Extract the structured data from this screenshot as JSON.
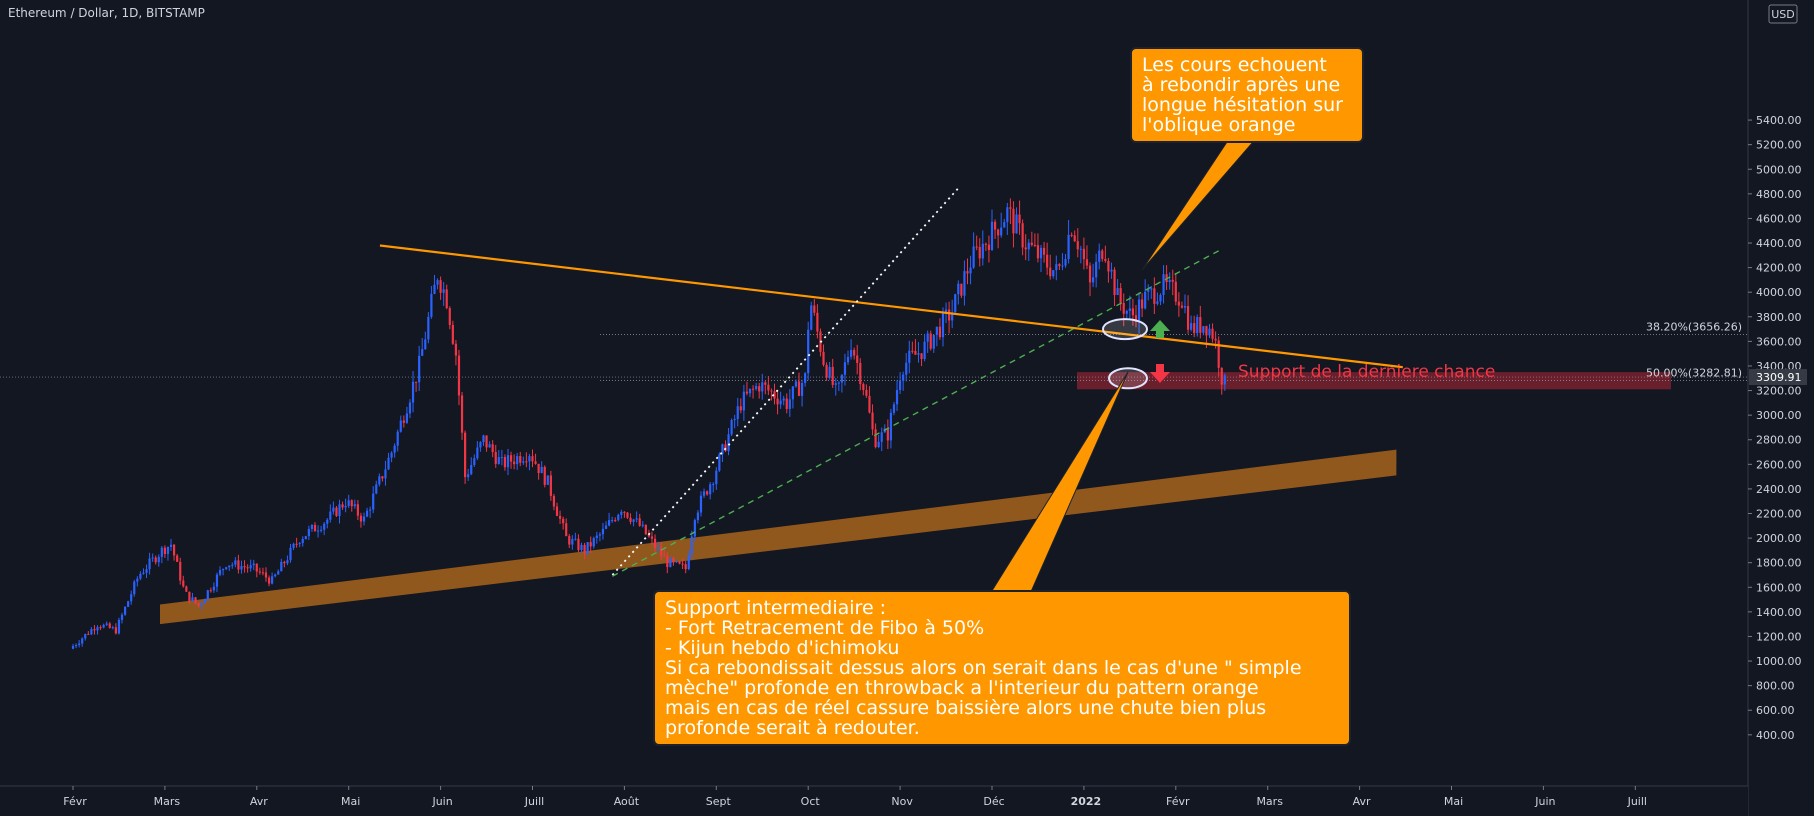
{
  "header": {
    "title": "Ethereum / Dollar, 1D, BITSTAMP"
  },
  "currency_badge": "USD",
  "callout_top": {
    "lines": [
      "Les cours echouent",
      "à rebondir après une",
      "longue hésitation sur",
      "l'oblique orange"
    ]
  },
  "callout_bottom": {
    "lines": [
      "Support intermediaire :",
      "- Fort Retracement de Fibo à 50%",
      "- Kijun hebdo d'ichimoku",
      "Si ca rebondissait dessus alors on serait dans le cas d'une \" simple",
      "mèche\" profonde en throwback a l'interieur du pattern orange",
      "mais en cas de réel cassure baissière alors une chute bien plus",
      "profonde serait à redouter."
    ]
  },
  "support_label": "Support de la derniere chance",
  "colors": {
    "background": "#131722",
    "up": "#2962ff",
    "down": "#f23645",
    "orange": "#ff9800",
    "callout": "#ff9800",
    "green_arrow": "#4caf50",
    "red_arrow": "#f23645"
  },
  "chart_data": {
    "type": "candlestick",
    "x_axis": {
      "ticks": [
        "Févr",
        "Mars",
        "Avr",
        "Mai",
        "Juin",
        "Juill",
        "Août",
        "Sept",
        "Oct",
        "Nov",
        "Déc",
        "2022",
        "Févr",
        "Mars",
        "Avr",
        "Mai",
        "Juin",
        "Juill"
      ]
    },
    "y_axis": {
      "min": 400,
      "max": 5400,
      "ticks": [
        400,
        600,
        800,
        1000,
        1200,
        1400,
        1600,
        1800,
        2000,
        2200,
        2400,
        2600,
        2800,
        3000,
        3200,
        3400,
        3600,
        3800,
        4000,
        4200,
        4400,
        4600,
        4800,
        5000,
        5200,
        5400
      ],
      "tick_labels": [
        "400.00",
        "600.00",
        "800.00",
        "1000.00",
        "1200.00",
        "1400.00",
        "1600.00",
        "1800.00",
        "2000.00",
        "2200.00",
        "2400.00",
        "2600.00",
        "2800.00",
        "3000.00",
        "3200.00",
        "3400.00",
        "3600.00",
        "3800.00",
        "4000.00",
        "4200.00",
        "4400.00",
        "4600.00",
        "4800.00",
        "5000.00",
        "5200.00",
        "5400.00"
      ]
    },
    "current_price": {
      "value": 3309.91,
      "label": "3309.91"
    },
    "fib_levels": [
      {
        "value": 3656.26,
        "label": "38.20%(3656.26)"
      },
      {
        "value": 3282.81,
        "label": "50.00%(3282.81)"
      }
    ],
    "series_keypoints": [
      {
        "month": 0.0,
        "price": 1100
      },
      {
        "month": 0.3,
        "price": 1300
      },
      {
        "month": 0.5,
        "price": 1250
      },
      {
        "month": 0.75,
        "price": 1700
      },
      {
        "month": 1.0,
        "price": 1900
      },
      {
        "month": 1.1,
        "price": 1950
      },
      {
        "month": 1.25,
        "price": 1550
      },
      {
        "month": 1.4,
        "price": 1450
      },
      {
        "month": 1.7,
        "price": 1800
      },
      {
        "month": 2.0,
        "price": 1750
      },
      {
        "month": 2.2,
        "price": 1650
      },
      {
        "month": 2.5,
        "price": 2000
      },
      {
        "month": 2.8,
        "price": 2150
      },
      {
        "month": 3.0,
        "price": 2300
      },
      {
        "month": 3.2,
        "price": 2150
      },
      {
        "month": 3.5,
        "price": 2700
      },
      {
        "month": 3.8,
        "price": 3400
      },
      {
        "month": 4.0,
        "price": 4150
      },
      {
        "month": 4.1,
        "price": 3950
      },
      {
        "month": 4.2,
        "price": 3500
      },
      {
        "month": 4.3,
        "price": 2500
      },
      {
        "month": 4.5,
        "price": 2800
      },
      {
        "month": 4.7,
        "price": 2600
      },
      {
        "month": 5.0,
        "price": 2700
      },
      {
        "month": 5.2,
        "price": 2450
      },
      {
        "month": 5.4,
        "price": 2000
      },
      {
        "month": 5.6,
        "price": 1900
      },
      {
        "month": 5.8,
        "price": 2050
      },
      {
        "month": 6.0,
        "price": 2250
      },
      {
        "month": 6.2,
        "price": 2100
      },
      {
        "month": 6.5,
        "price": 1800
      },
      {
        "month": 6.7,
        "price": 1750
      },
      {
        "month": 6.8,
        "price": 2200
      },
      {
        "month": 7.0,
        "price": 2500
      },
      {
        "month": 7.3,
        "price": 3100
      },
      {
        "month": 7.5,
        "price": 3250
      },
      {
        "month": 7.8,
        "price": 3100
      },
      {
        "month": 8.0,
        "price": 3300
      },
      {
        "month": 8.05,
        "price": 3950
      },
      {
        "month": 8.2,
        "price": 3450
      },
      {
        "month": 8.35,
        "price": 3150
      },
      {
        "month": 8.5,
        "price": 3600
      },
      {
        "month": 8.65,
        "price": 3200
      },
      {
        "month": 8.75,
        "price": 2800
      },
      {
        "month": 8.9,
        "price": 2850
      },
      {
        "month": 9.05,
        "price": 3400
      },
      {
        "month": 9.3,
        "price": 3550
      },
      {
        "month": 9.6,
        "price": 3850
      },
      {
        "month": 9.8,
        "price": 4250
      },
      {
        "month": 10.0,
        "price": 4450
      },
      {
        "month": 10.2,
        "price": 4650
      },
      {
        "month": 10.4,
        "price": 4400
      },
      {
        "month": 10.6,
        "price": 4250
      },
      {
        "month": 10.75,
        "price": 4150
      },
      {
        "month": 10.9,
        "price": 4550
      },
      {
        "month": 11.0,
        "price": 4350
      },
      {
        "month": 11.1,
        "price": 4050
      },
      {
        "month": 11.25,
        "price": 4400
      },
      {
        "month": 11.4,
        "price": 3950
      },
      {
        "month": 11.55,
        "price": 3800
      },
      {
        "month": 11.7,
        "price": 3950
      },
      {
        "month": 11.9,
        "price": 4050
      },
      {
        "month": 12.1,
        "price": 3950
      },
      {
        "month": 12.2,
        "price": 3700
      },
      {
        "month": 12.35,
        "price": 3750
      },
      {
        "month": 12.45,
        "price": 3650
      },
      {
        "month": 12.55,
        "price": 3250
      }
    ]
  }
}
